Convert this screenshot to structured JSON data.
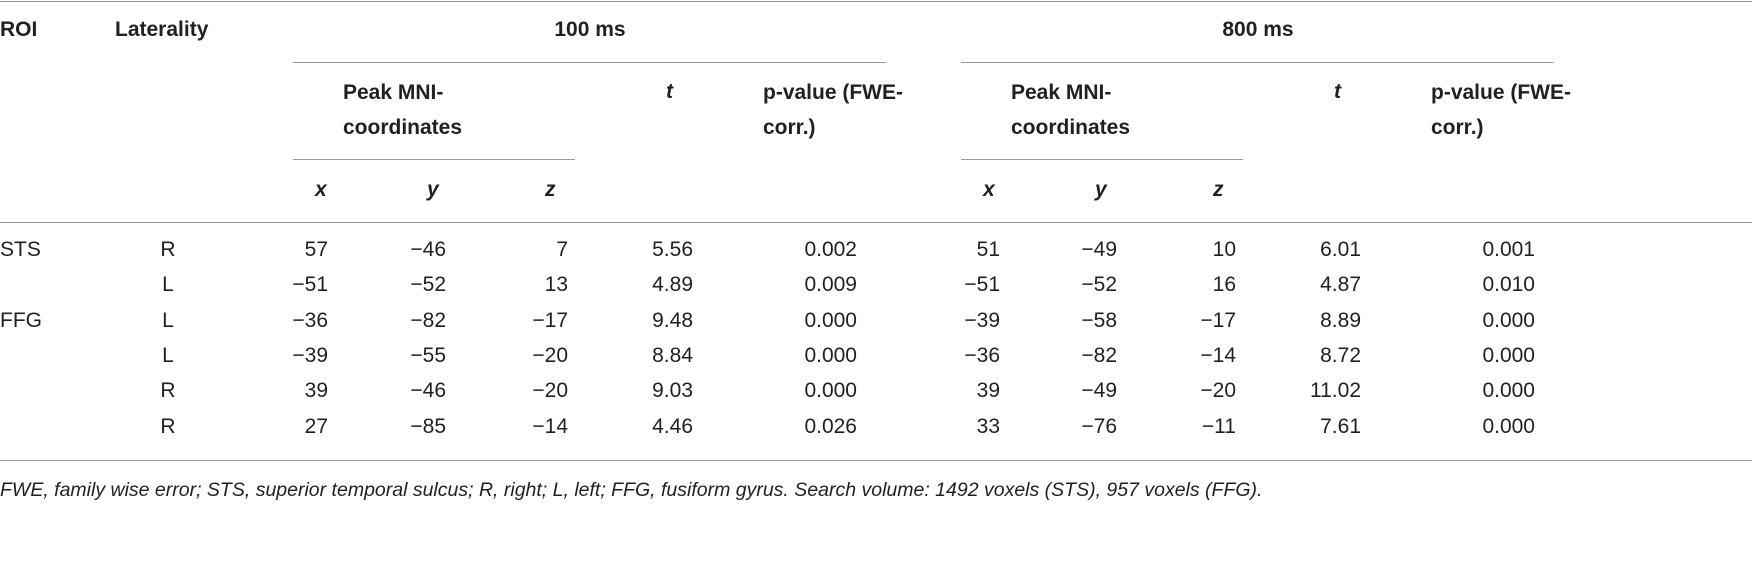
{
  "table": {
    "headers": {
      "roi": "ROI",
      "laterality": "Laterality",
      "groups": [
        "100 ms",
        "800 ms"
      ],
      "coords": "Peak MNI-coordinates",
      "t": "t",
      "p": "p-value (FWE-corr.)",
      "axes": [
        "x",
        "y",
        "z"
      ]
    },
    "groups": [
      {
        "roi": "STS",
        "rows": [
          [
            "R",
            "57",
            "−46",
            "7",
            "5.56",
            "0.002",
            "51",
            "−49",
            "10",
            "6.01",
            "0.001"
          ],
          [
            "L",
            "−51",
            "−52",
            "13",
            "4.89",
            "0.009",
            "−51",
            "−52",
            "16",
            "4.87",
            "0.010"
          ]
        ]
      },
      {
        "roi": "FFG",
        "rows": [
          [
            "L",
            "−36",
            "−82",
            "−17",
            "9.48",
            "0.000",
            "−39",
            "−58",
            "−17",
            "8.89",
            "0.000"
          ],
          [
            "L",
            "−39",
            "−55",
            "−20",
            "8.84",
            "0.000",
            "−36",
            "−82",
            "−14",
            "8.72",
            "0.000"
          ],
          [
            "R",
            "39",
            "−46",
            "−20",
            "9.03",
            "0.000",
            "39",
            "−49",
            "−20",
            "11.02",
            "0.000"
          ],
          [
            "R",
            "27",
            "−85",
            "−14",
            "4.46",
            "0.026",
            "33",
            "−76",
            "−11",
            "7.61",
            "0.000"
          ]
        ]
      }
    ],
    "footnote": "FWE, family wise error; STS, superior temporal sulcus; R, right; L, left; FFG, fusiform gyrus. Search volume: 1492 voxels (STS), 957 voxels (FFG)."
  }
}
